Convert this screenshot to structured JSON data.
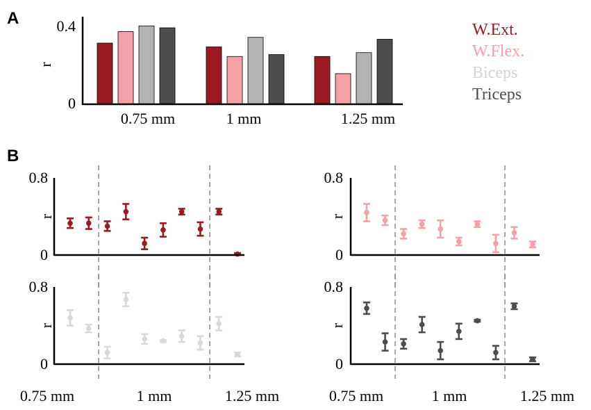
{
  "panel_labels": {
    "a": "A",
    "b": "B"
  },
  "colors": {
    "W.Ext.": "#9b1b22",
    "W.Flex.": "#f4a0a6",
    "Biceps": "#b3b3b3",
    "Triceps": "#4d4d4d",
    "Biceps_light": "#d9d9d9"
  },
  "chart_data": [
    {
      "type": "bar",
      "panel": "A",
      "categories": [
        "0.75 mm",
        "1 mm",
        "1.25 mm"
      ],
      "ylabel": "r",
      "ylim": [
        0,
        0.44
      ],
      "yticks": [
        "0",
        "0.4"
      ],
      "legend": {
        "position": "right"
      },
      "series": [
        {
          "name": "W.Ext.",
          "values": [
            0.32,
            0.3,
            0.25
          ]
        },
        {
          "name": "W.Flex.",
          "values": [
            0.38,
            0.25,
            0.16
          ]
        },
        {
          "name": "Biceps",
          "values": [
            0.41,
            0.35,
            0.27
          ]
        },
        {
          "name": "Triceps",
          "values": [
            0.4,
            0.26,
            0.34
          ]
        }
      ]
    },
    {
      "type": "scatter",
      "panel": "B",
      "muscle": "W.Ext.",
      "ylabel": "r",
      "ylim": [
        0,
        0.8
      ],
      "yticks": [
        "0",
        "0.8"
      ],
      "points": [
        {
          "y": 0.33,
          "err": 0.05
        },
        {
          "y": 0.33,
          "err": 0.06
        },
        {
          "y": 0.3,
          "err": 0.05
        },
        {
          "y": 0.45,
          "err": 0.08
        },
        {
          "y": 0.12,
          "err": 0.06
        },
        {
          "y": 0.26,
          "err": 0.07
        },
        {
          "y": 0.45,
          "err": 0.03
        },
        {
          "y": 0.27,
          "err": 0.07
        },
        {
          "y": 0.45,
          "err": 0.03
        },
        {
          "y": 0.01,
          "err": 0.01
        }
      ]
    },
    {
      "type": "scatter",
      "panel": "B",
      "muscle": "W.Flex.",
      "ylabel": "r",
      "ylim": [
        0,
        0.8
      ],
      "yticks": [
        "0",
        "0.8"
      ],
      "points": [
        {
          "y": 0.44,
          "err": 0.09
        },
        {
          "y": 0.36,
          "err": 0.05
        },
        {
          "y": 0.22,
          "err": 0.05
        },
        {
          "y": 0.32,
          "err": 0.04
        },
        {
          "y": 0.27,
          "err": 0.09
        },
        {
          "y": 0.14,
          "err": 0.04
        },
        {
          "y": 0.32,
          "err": 0.03
        },
        {
          "y": 0.12,
          "err": 0.09
        },
        {
          "y": 0.23,
          "err": 0.06
        },
        {
          "y": 0.11,
          "err": 0.03
        }
      ]
    },
    {
      "type": "scatter",
      "panel": "B",
      "muscle": "Biceps",
      "xlabels": [
        "0.75 mm",
        "1 mm",
        "1.25 mm"
      ],
      "ylabel": "r",
      "ylim": [
        0,
        0.8
      ],
      "yticks": [
        "0",
        "0.8"
      ],
      "points": [
        {
          "y": 0.48,
          "err": 0.08
        },
        {
          "y": 0.37,
          "err": 0.04
        },
        {
          "y": 0.12,
          "err": 0.06
        },
        {
          "y": 0.67,
          "err": 0.07
        },
        {
          "y": 0.26,
          "err": 0.05
        },
        {
          "y": 0.24,
          "err": 0.01
        },
        {
          "y": 0.29,
          "err": 0.06
        },
        {
          "y": 0.22,
          "err": 0.07
        },
        {
          "y": 0.42,
          "err": 0.07
        },
        {
          "y": 0.1,
          "err": 0.02
        }
      ]
    },
    {
      "type": "scatter",
      "panel": "B",
      "muscle": "Triceps",
      "xlabels": [
        "0.75 mm",
        "1 mm",
        "1.25 mm"
      ],
      "ylabel": "r",
      "ylim": [
        0,
        0.8
      ],
      "yticks": [
        "0",
        "0.8"
      ],
      "points": [
        {
          "y": 0.58,
          "err": 0.06
        },
        {
          "y": 0.23,
          "err": 0.09
        },
        {
          "y": 0.21,
          "err": 0.05
        },
        {
          "y": 0.41,
          "err": 0.08
        },
        {
          "y": 0.14,
          "err": 0.09
        },
        {
          "y": 0.34,
          "err": 0.08
        },
        {
          "y": 0.45,
          "err": 0.01
        },
        {
          "y": 0.12,
          "err": 0.07
        },
        {
          "y": 0.6,
          "err": 0.03
        },
        {
          "y": 0.05,
          "err": 0.02
        }
      ]
    }
  ]
}
